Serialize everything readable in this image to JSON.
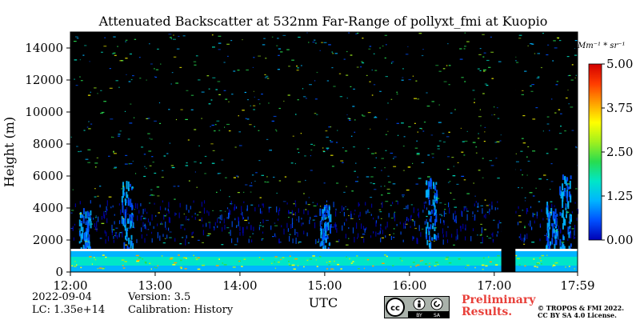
{
  "chart_data": {
    "type": "heatmap",
    "title": "Attenuated Backscatter at 532nm Far-Range of pollyxt_fmi at Kuopio",
    "xlabel": "UTC",
    "ylabel": "Height (m)",
    "x_ticks": [
      "12:00",
      "13:00",
      "14:00",
      "15:00",
      "16:00",
      "17:00",
      "17:59"
    ],
    "x_range": [
      "12:00",
      "17:59"
    ],
    "y_ticks": [
      0,
      2000,
      4000,
      6000,
      8000,
      10000,
      12000,
      14000
    ],
    "y_range": [
      0,
      15000
    ],
    "colorbar": {
      "unit_label": "Mm⁻¹ * sr⁻¹",
      "ticks": [
        "0.00",
        "1.25",
        "2.50",
        "3.75",
        "5.00"
      ],
      "range": [
        0,
        5
      ],
      "colormap": [
        "#0000b4",
        "#0050ff",
        "#00b4ff",
        "#00e6c8",
        "#28dc50",
        "#a0f01e",
        "#ffff00",
        "#ffa000",
        "#ff3c00",
        "#d20000"
      ]
    },
    "features": {
      "boundary_layer_top_m": 1400,
      "data_gap_utc": [
        "17:05",
        "17:15"
      ],
      "plumes_utc": [
        "12:10",
        "12:40",
        "15:00",
        "16:15",
        "17:40",
        "17:50"
      ]
    }
  },
  "footer": {
    "date": "2022-09-04",
    "lc": "LC: 1.35e+14",
    "version": "Version: 3.5",
    "calibration": "Calibration: History",
    "preliminary_line1": "Preliminary",
    "preliminary_line2": "Results.",
    "copyright_line1": "© TROPOS & FMI 2022.",
    "copyright_line2": "CC BY SA 4.0 License.",
    "license_badge": [
      "BY",
      "SA"
    ]
  }
}
